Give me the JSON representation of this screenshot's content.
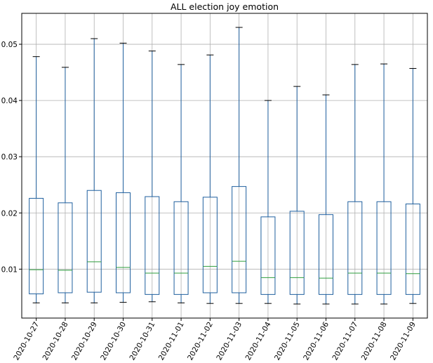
{
  "chart_data": {
    "type": "box",
    "title": "ALL election joy emotion",
    "xlabel": "",
    "ylabel": "",
    "ylim": [
      0.0013,
      0.0555
    ],
    "yticks": [
      0.01,
      0.02,
      0.03,
      0.04,
      0.05
    ],
    "ytick_labels": [
      "0.01",
      "0.02",
      "0.03",
      "0.04",
      "0.05"
    ],
    "grid": true,
    "colors": {
      "box": "#1f5f9e",
      "median": "#2e9e3c",
      "grid": "#b0b0b0",
      "axis": "#000000"
    },
    "categories": [
      "2020-10-27",
      "2020-10-28",
      "2020-10-29",
      "2020-10-30",
      "2020-10-31",
      "2020-11-01",
      "2020-11-02",
      "2020-11-03",
      "2020-11-04",
      "2020-11-05",
      "2020-11-06",
      "2020-11-07",
      "2020-11-08",
      "2020-11-09"
    ],
    "boxes": [
      {
        "whislo": 0.004,
        "q1": 0.0056,
        "med": 0.0099,
        "q3": 0.0226,
        "whishi": 0.0478
      },
      {
        "whislo": 0.004,
        "q1": 0.0058,
        "med": 0.0098,
        "q3": 0.0218,
        "whishi": 0.0459
      },
      {
        "whislo": 0.004,
        "q1": 0.0059,
        "med": 0.0113,
        "q3": 0.024,
        "whishi": 0.051
      },
      {
        "whislo": 0.0041,
        "q1": 0.0058,
        "med": 0.0103,
        "q3": 0.0236,
        "whishi": 0.0502
      },
      {
        "whislo": 0.0042,
        "q1": 0.0055,
        "med": 0.0093,
        "q3": 0.0229,
        "whishi": 0.0488
      },
      {
        "whislo": 0.004,
        "q1": 0.0055,
        "med": 0.0093,
        "q3": 0.022,
        "whishi": 0.0464
      },
      {
        "whislo": 0.0039,
        "q1": 0.0058,
        "med": 0.0105,
        "q3": 0.0228,
        "whishi": 0.0481
      },
      {
        "whislo": 0.0039,
        "q1": 0.0058,
        "med": 0.0114,
        "q3": 0.0247,
        "whishi": 0.053
      },
      {
        "whislo": 0.0039,
        "q1": 0.0055,
        "med": 0.0085,
        "q3": 0.0193,
        "whishi": 0.04
      },
      {
        "whislo": 0.0038,
        "q1": 0.0055,
        "med": 0.0085,
        "q3": 0.0203,
        "whishi": 0.0425
      },
      {
        "whislo": 0.0038,
        "q1": 0.0055,
        "med": 0.0084,
        "q3": 0.0197,
        "whishi": 0.041
      },
      {
        "whislo": 0.0038,
        "q1": 0.0055,
        "med": 0.0093,
        "q3": 0.022,
        "whishi": 0.0464
      },
      {
        "whislo": 0.0038,
        "q1": 0.0055,
        "med": 0.0093,
        "q3": 0.022,
        "whishi": 0.0465
      },
      {
        "whislo": 0.0039,
        "q1": 0.0055,
        "med": 0.0092,
        "q3": 0.0216,
        "whishi": 0.0457
      }
    ]
  }
}
